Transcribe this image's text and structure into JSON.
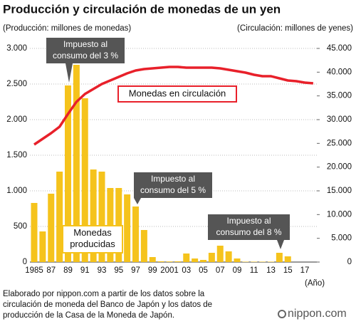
{
  "chart_data": {
    "type": "bar_line",
    "title": "Producción y circulación de monedas de un yen",
    "y_label": "(Producción: millones de monedas)",
    "y2_label": "(Circulación: millones de yenes)",
    "x_label": "(Año)",
    "categories": [
      "1985",
      null,
      "87",
      null,
      "89",
      null,
      "91",
      null,
      "93",
      null,
      "95",
      null,
      "97",
      null,
      "99",
      null,
      "2001",
      null,
      "03",
      null,
      "05",
      null,
      "07",
      null,
      "09",
      null,
      "11",
      null,
      "13",
      null,
      "15",
      null,
      "17",
      null
    ],
    "series": [
      {
        "name": "Monedas producidas",
        "type": "bar",
        "color": "#f5c31c",
        "values": [
          830,
          430,
          960,
          1270,
          2480,
          2770,
          2300,
          1300,
          1270,
          1040,
          1040,
          950,
          780,
          450,
          70,
          10,
          8,
          10,
          120,
          50,
          30,
          130,
          230,
          150,
          50,
          5,
          5,
          5,
          5,
          130,
          80,
          0,
          0,
          0
        ]
      },
      {
        "name": "Monedas en circulación",
        "type": "line",
        "axis": "y2",
        "color": "#e8202a",
        "values": [
          24750,
          25950,
          27150,
          28500,
          31200,
          33750,
          35400,
          36450,
          37500,
          38250,
          39000,
          39750,
          40350,
          40650,
          40800,
          40950,
          41100,
          41100,
          40950,
          40950,
          40950,
          40950,
          40800,
          40500,
          40200,
          39900,
          39450,
          39150,
          39150,
          38700,
          38250,
          38100,
          37800,
          37650
        ]
      }
    ],
    "ylim": [
      0,
      3000
    ],
    "yticks": [
      0,
      {
        "value": 500,
        "label": "500"
      },
      {
        "value": 1000,
        "label": "1.000"
      },
      {
        "value": 1500,
        "label": "1.500"
      },
      {
        "value": 2000,
        "label": "2.000"
      },
      {
        "value": 2500,
        "label": "2.500"
      },
      {
        "value": 3000,
        "label": "3.000"
      }
    ],
    "y2lim": [
      0,
      45000
    ],
    "y2ticks": [
      0,
      {
        "value": 5000,
        "label": "5.000"
      },
      {
        "value": 10000,
        "label": "10.000"
      },
      {
        "value": 15000,
        "label": "15.000"
      },
      {
        "value": 20000,
        "label": "20.000"
      },
      {
        "value": 25000,
        "label": "25.000"
      },
      {
        "value": 30000,
        "label": "30.000"
      },
      {
        "value": 35000,
        "label": "35.000"
      },
      {
        "value": 40000,
        "label": "40.000"
      },
      {
        "value": 45000,
        "label": "45.000"
      }
    ],
    "grid": true,
    "annotations": [
      {
        "lines": [
          "Impuesto al",
          "consumo del 3 %"
        ]
      },
      {
        "lines": [
          "Impuesto al",
          "consumo del 5 %"
        ]
      },
      {
        "lines": [
          "Impuesto al",
          "consumo del 8 %"
        ]
      }
    ],
    "source": [
      "Elaborado por nippon.com a partir de los datos sobre la",
      "circulación de moneda del Banco de Japón y los datos de",
      "producción de la Casa de la Moneda de Japón."
    ],
    "logo": "nippon.com"
  }
}
